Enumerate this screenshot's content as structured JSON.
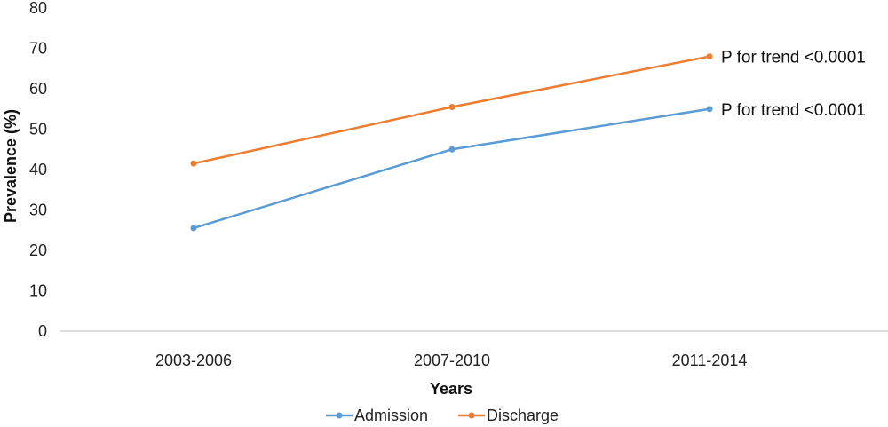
{
  "chart_data": {
    "type": "line",
    "categories": [
      "2003-2006",
      "2007-2010",
      "2011-2014"
    ],
    "series": [
      {
        "name": "Admission",
        "values": [
          25.5,
          45,
          55
        ],
        "color": "#5b9bd5",
        "annotation": "P for trend <0.0001"
      },
      {
        "name": "Discharge",
        "values": [
          41.5,
          55.5,
          68
        ],
        "color": "#ed7d31",
        "annotation": "P for trend <0.0001"
      }
    ],
    "xlabel": "Years",
    "ylabel": "Prevalence (%)",
    "ylim": [
      0,
      80
    ],
    "yticks": [
      0,
      10,
      20,
      30,
      40,
      50,
      60,
      70,
      80
    ],
    "grid": false,
    "legend_position": "bottom"
  }
}
